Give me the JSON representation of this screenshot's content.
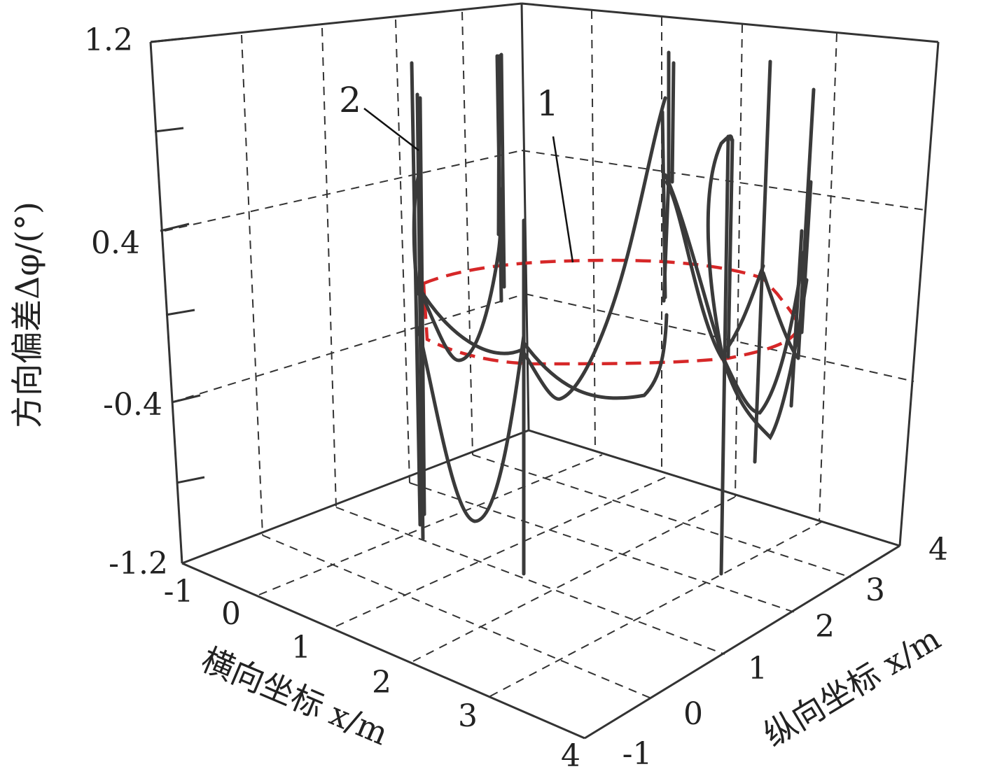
{
  "chart_data": {
    "type": "line",
    "projection": "3d",
    "title": "",
    "zlabel": "方向偏差Δφ/(°)",
    "xlabel": "横向坐标 x/m",
    "ylabel": "纵向坐标 x/m",
    "xlim": [
      -1,
      4
    ],
    "ylim": [
      -1,
      4
    ],
    "zlim": [
      -1.2,
      1.2
    ],
    "z_ticks": [
      "1.2",
      "0.4",
      "-0.4",
      "-1.2"
    ],
    "x_ticks": [
      "-1",
      "0",
      "1",
      "2",
      "3",
      "4"
    ],
    "y_ticks": [
      "-1",
      "0",
      "1",
      "2",
      "3",
      "4"
    ],
    "grid": true,
    "series": [
      {
        "name": "1",
        "color": "#d62728",
        "style": "dashed",
        "description_of_path": "closed loop at approximately constant deviation",
        "z_value": 0.0
      },
      {
        "name": "2",
        "color": "#3a3a3a",
        "style": "solid",
        "z_min": -1.1,
        "z_max": 1.15
      }
    ],
    "annotations": [
      "1",
      "2"
    ]
  }
}
